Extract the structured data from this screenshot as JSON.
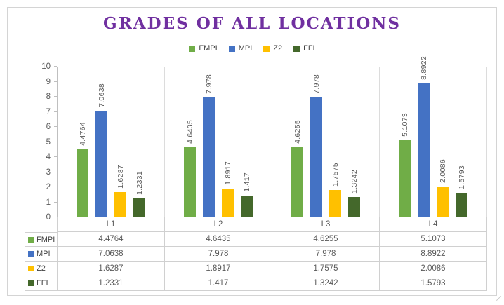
{
  "chart_data": {
    "type": "bar",
    "title": "GRADES OF ALL LOCATIONS",
    "title_color": "#7030A0",
    "categories": [
      "L1",
      "L2",
      "L3",
      "L4"
    ],
    "series": [
      {
        "name": "FMPI",
        "color": "#70AD47",
        "values": [
          4.4764,
          4.6435,
          4.6255,
          5.1073
        ]
      },
      {
        "name": "MPI",
        "color": "#4472C4",
        "values": [
          7.0638,
          7.978,
          7.978,
          8.8922
        ]
      },
      {
        "name": "Z2",
        "color": "#FFC000",
        "values": [
          1.6287,
          1.8917,
          1.7575,
          2.0086
        ]
      },
      {
        "name": "FFI",
        "color": "#44682B",
        "values": [
          1.2331,
          1.417,
          1.3242,
          1.5793
        ]
      }
    ],
    "ylim": [
      0,
      10
    ],
    "ytick_step": 1,
    "ytick_labels": [
      "0",
      "1",
      "2",
      "3",
      "4",
      "5",
      "6",
      "7",
      "8",
      "9",
      "10"
    ],
    "grid": false,
    "legend_position": "top",
    "data_labels": true,
    "data_table": true
  }
}
